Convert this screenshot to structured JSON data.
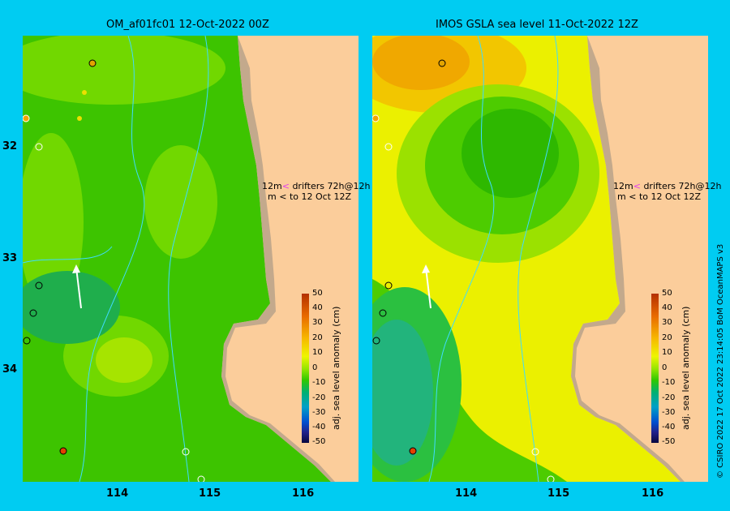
{
  "panels": [
    {
      "title": "OM_af01fc01 12-Oct-2022 00Z",
      "colorbar_title": "adj. sea level anomaly (cm)"
    },
    {
      "title": "IMOS GSLA sea level  11-Oct-2022 12Z",
      "colorbar_title": "adj. sea level anomaly (cm)"
    }
  ],
  "longitude_labels": [
    "114",
    "115",
    "116"
  ],
  "latitude_labels": [
    "32",
    "33",
    "34"
  ],
  "legend": {
    "line1": "12m",
    "line1_suffix": "drifters 72h@12h",
    "line2": "m",
    "line2_suffix": "to 12 Oct 12Z",
    "line1_arrow_color": "#e03cf0",
    "line2_arrow_color": "#000000"
  },
  "colorbar": {
    "ticks": [
      "50",
      "40",
      "30",
      "20",
      "10",
      "0",
      "-10",
      "-20",
      "-30",
      "-40",
      "-50"
    ],
    "range": [
      -50,
      50
    ],
    "colors": [
      "#f7d09a",
      "#b33000",
      "#e86a00",
      "#f7b800",
      "#eef500",
      "#9ae600",
      "#2fc800",
      "#00b070",
      "#00a0c8",
      "#0050d0",
      "#20208a",
      "#08083e"
    ]
  },
  "credit": "© CSIRO 2022   17 Oct 2022 23:14:05 BoM OceanMAPS v3",
  "land_color": "#fbcd9b",
  "shelf_color": "#c3a98c",
  "depth_contour_color": "#3fdcff"
}
